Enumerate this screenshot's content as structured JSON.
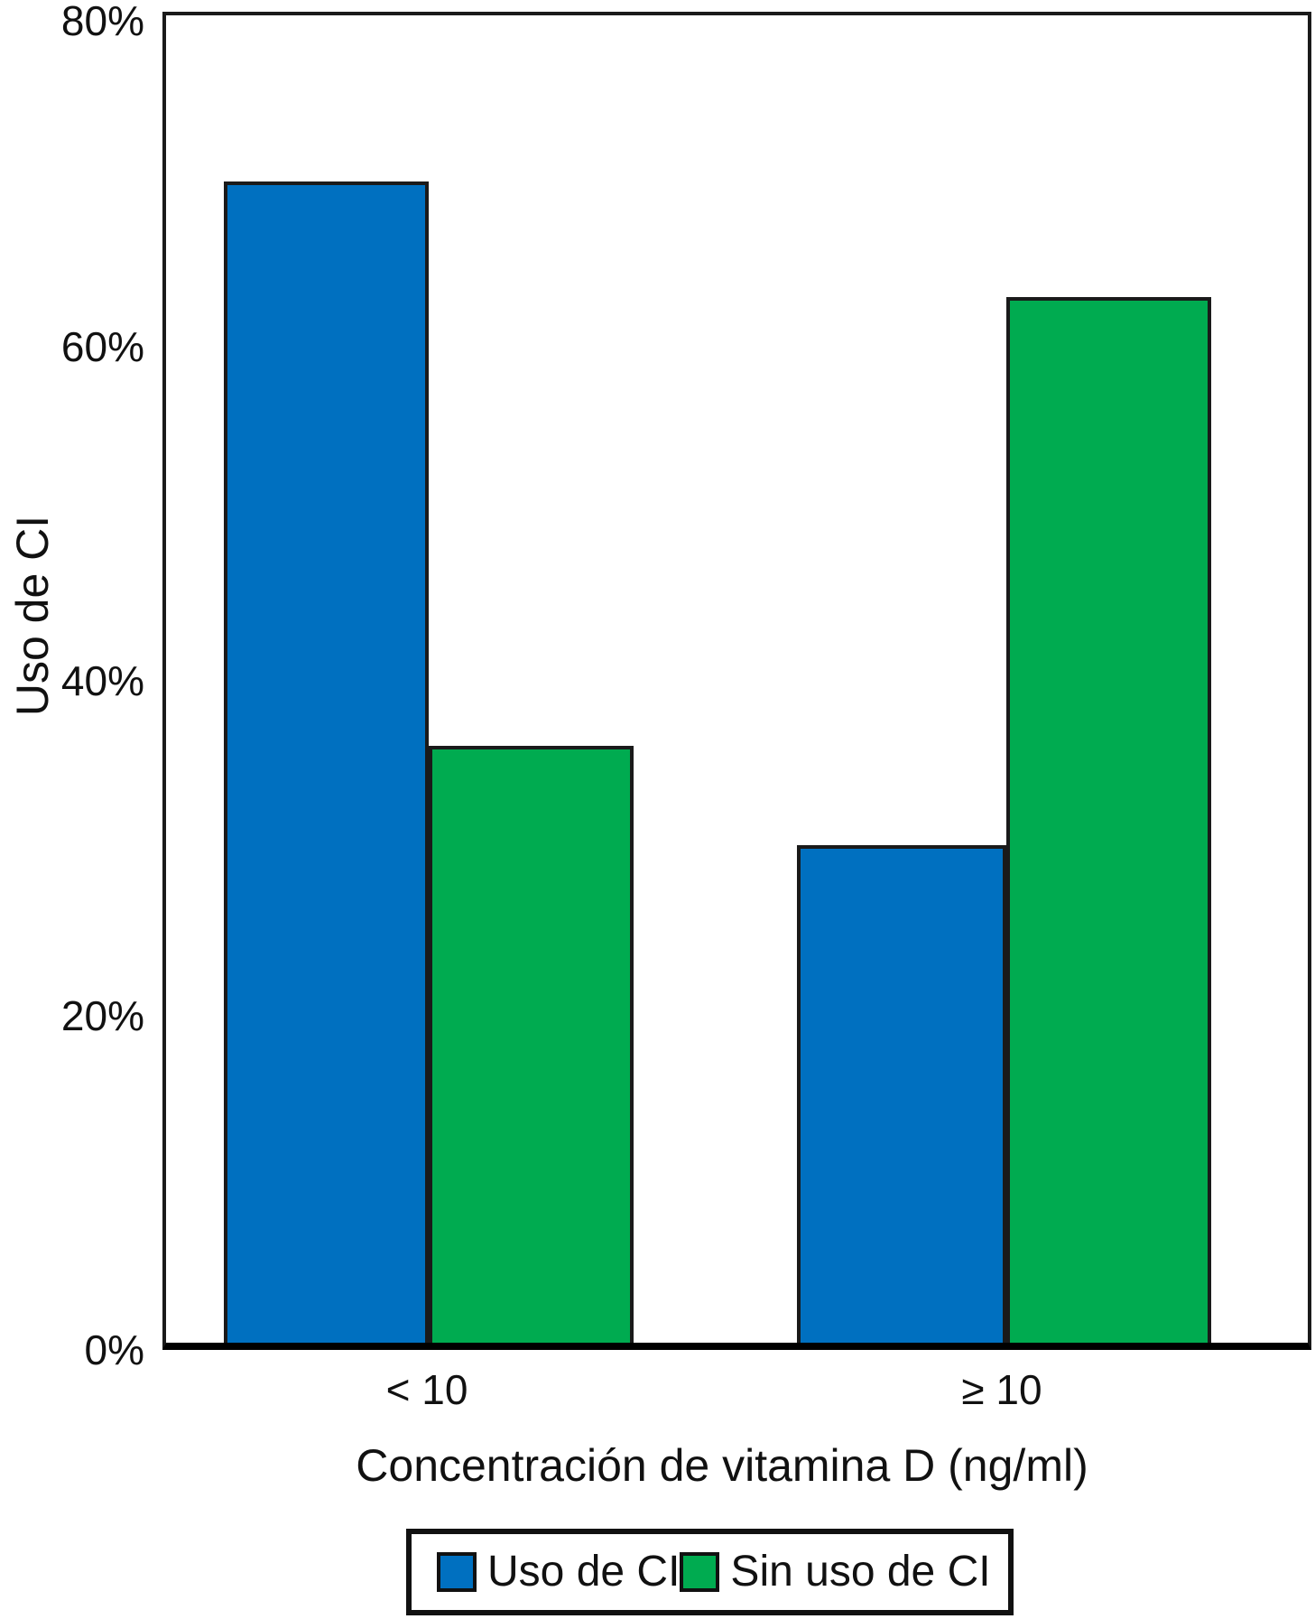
{
  "chart_data": {
    "type": "bar",
    "title": "",
    "xlabel": "Concentración de vitamina D (ng/ml)",
    "ylabel": "Uso de CI",
    "categories": [
      "< 10",
      "≥ 10"
    ],
    "series": [
      {
        "name": "Uso de CI",
        "color": "#0070c0",
        "values": [
          70,
          30
        ]
      },
      {
        "name": "Sin uso de CI",
        "color": "#00ab50",
        "values": [
          36,
          63
        ]
      }
    ],
    "ylim": [
      0,
      80
    ],
    "yticks": [
      {
        "value": 0,
        "label": "0%"
      },
      {
        "value": 20,
        "label": "20%"
      },
      {
        "value": 40,
        "label": "40%"
      },
      {
        "value": 60,
        "label": "60%"
      },
      {
        "value": 80,
        "label": "80%"
      }
    ],
    "grid": false,
    "legend_position": "bottom",
    "bar_border_color": "#1a1a1a",
    "axis_color": "#1a1a1a",
    "background": "#ffffff"
  }
}
